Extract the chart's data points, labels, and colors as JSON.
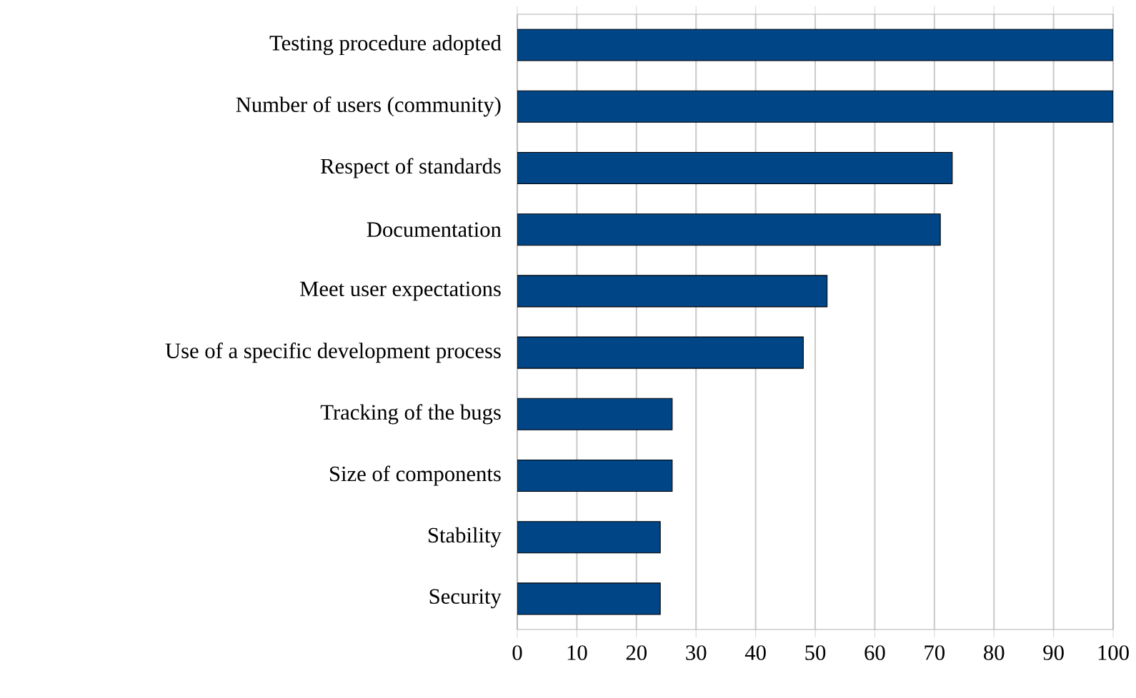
{
  "chart_data": {
    "type": "bar",
    "orientation": "horizontal",
    "categories": [
      "Testing procedure adopted",
      "Number of users (community)",
      "Respect of standards",
      "Documentation",
      "Meet user expectations",
      "Use of a specific development process",
      "Tracking of the bugs",
      "Size of components",
      "Stability",
      "Security"
    ],
    "values": [
      100,
      100,
      73,
      71,
      52,
      48,
      26,
      26,
      24,
      24
    ],
    "color": "#004586",
    "xlim": [
      0,
      100
    ],
    "xticks": [
      0,
      10,
      20,
      30,
      40,
      50,
      60,
      70,
      80,
      90,
      100
    ],
    "grid": "x"
  }
}
